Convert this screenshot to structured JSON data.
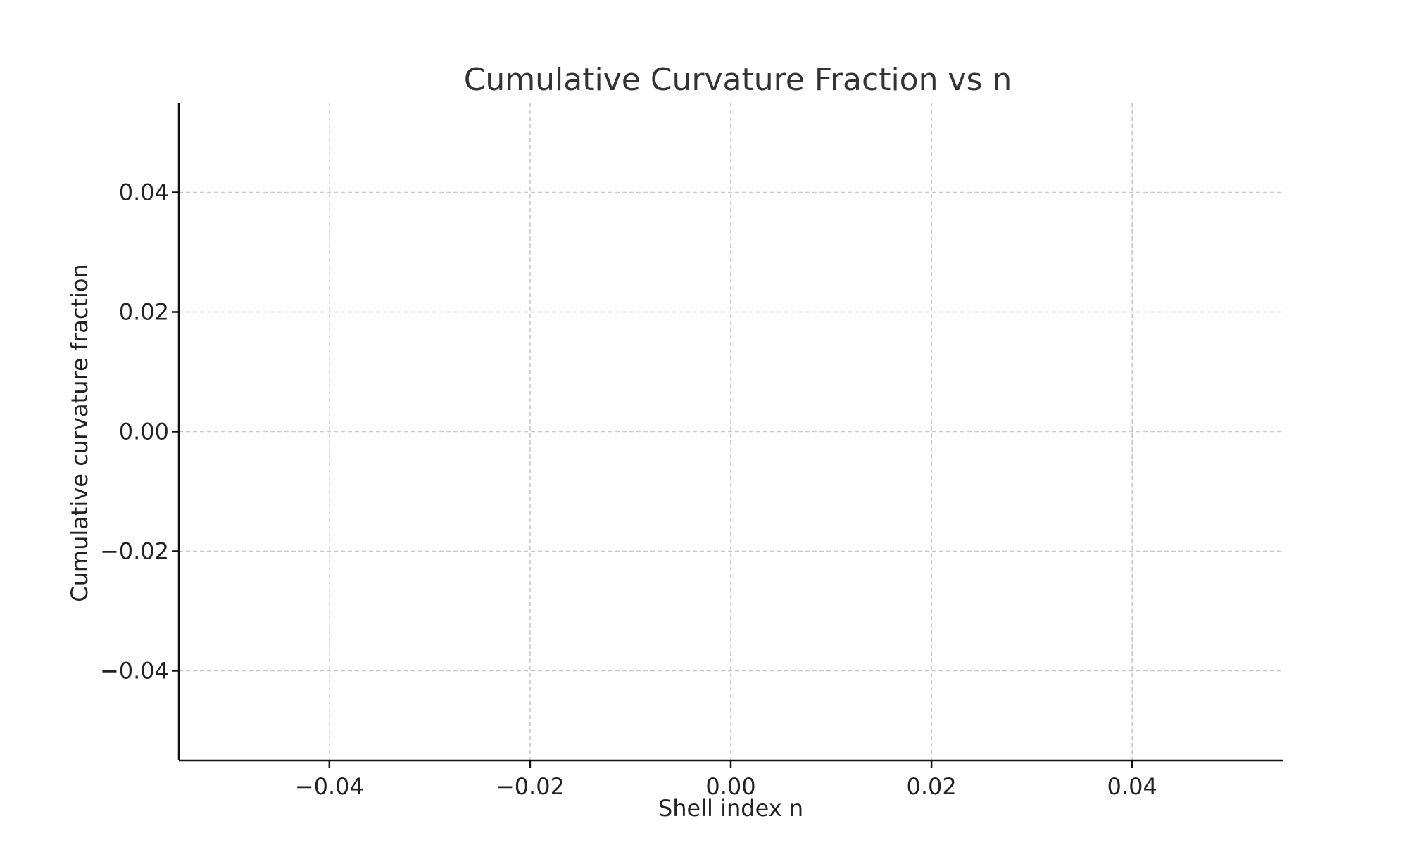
{
  "chart_data": {
    "type": "line",
    "title": "Cumulative Curvature Fraction vs n",
    "xlabel": "Shell index n",
    "ylabel": "Cumulative curvature fraction",
    "xlim": [
      -0.055,
      0.055
    ],
    "ylim": [
      -0.055,
      0.055
    ],
    "x_ticks": [
      -0.04,
      -0.02,
      0.0,
      0.02,
      0.04
    ],
    "x_tick_labels": [
      "−0.04",
      "−0.02",
      "0.00",
      "0.02",
      "0.04"
    ],
    "y_ticks": [
      -0.04,
      -0.02,
      0.0,
      0.02,
      0.04
    ],
    "y_tick_labels": [
      "−0.04",
      "−0.02",
      "0.00",
      "0.02",
      "0.04"
    ],
    "grid": true,
    "series": [
      {
        "x": [],
        "y": []
      }
    ]
  }
}
